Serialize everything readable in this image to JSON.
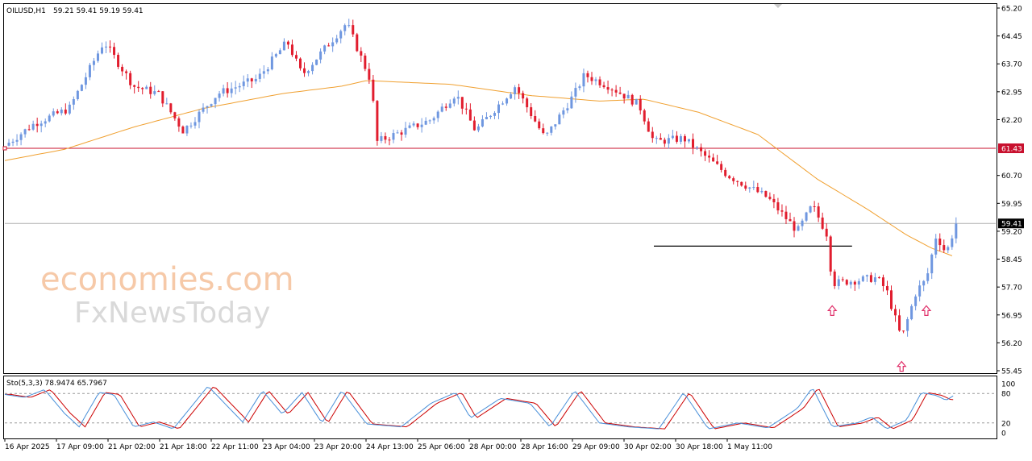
{
  "header": {
    "symbol": "OILUSD,H1",
    "ohlc": "59.21 59.41 59.19 59.41"
  },
  "price_axis": {
    "ticks": [
      "65.20",
      "64.45",
      "63.70",
      "62.95",
      "62.20",
      "61.43",
      "60.70",
      "59.95",
      "59.41",
      "59.20",
      "58.45",
      "57.70",
      "56.95",
      "56.20",
      "55.45"
    ],
    "current_price_label": "59.41",
    "level_label": "61.43"
  },
  "time_axis": {
    "labels": [
      "16 Apr 2025",
      "17 Apr 09:00",
      "21 Apr 02:00",
      "21 Apr 18:00",
      "22 Apr 11:00",
      "23 Apr 04:00",
      "23 Apr 20:00",
      "24 Apr 13:00",
      "25 Apr 06:00",
      "28 Apr 00:00",
      "28 Apr 16:00",
      "29 Apr 09:00",
      "30 Apr 02:00",
      "30 Apr 18:00",
      "1 May 11:00"
    ]
  },
  "stochastic": {
    "label": "Sto(5,3,3) 78.9474 65.7967",
    "levels": [
      "100",
      "80",
      "20",
      "0"
    ]
  },
  "watermark": {
    "line1": "economies.com",
    "line2": "FxNewsToday"
  },
  "colors": {
    "bull": "#6f97e0",
    "bear": "#e11d2e",
    "ma": "#f0a030",
    "resistance": "#c8102e",
    "neckline": "#000000",
    "stoch_main": "#4a90d9",
    "stoch_signal": "#cc0000",
    "arrow": "#e0306a"
  },
  "chart_data": {
    "type": "candlestick",
    "timeframe": "H1",
    "ylim": [
      55.45,
      65.2
    ],
    "horizontal_levels": [
      {
        "value": 61.43,
        "style": "resistance"
      },
      {
        "value": 58.8,
        "style": "neckline"
      }
    ],
    "close_path": [
      {
        "t": 0,
        "v": 61.5
      },
      {
        "t": 0.03,
        "v": 62.1
      },
      {
        "t": 0.065,
        "v": 62.5
      },
      {
        "t": 0.1,
        "v": 64.3
      },
      {
        "t": 0.13,
        "v": 63.1
      },
      {
        "t": 0.155,
        "v": 62.9
      },
      {
        "t": 0.18,
        "v": 61.9
      },
      {
        "t": 0.215,
        "v": 62.9
      },
      {
        "t": 0.255,
        "v": 63.3
      },
      {
        "t": 0.285,
        "v": 64.3
      },
      {
        "t": 0.3,
        "v": 63.4
      },
      {
        "t": 0.345,
        "v": 64.8
      },
      {
        "t": 0.37,
        "v": 63.2
      },
      {
        "t": 0.375,
        "v": 61.6
      },
      {
        "t": 0.43,
        "v": 62.2
      },
      {
        "t": 0.455,
        "v": 62.9
      },
      {
        "t": 0.475,
        "v": 61.9
      },
      {
        "t": 0.515,
        "v": 63.1
      },
      {
        "t": 0.545,
        "v": 61.7
      },
      {
        "t": 0.575,
        "v": 62.9
      },
      {
        "t": 0.585,
        "v": 63.4
      },
      {
        "t": 0.61,
        "v": 63.1
      },
      {
        "t": 0.64,
        "v": 62.6
      },
      {
        "t": 0.655,
        "v": 61.6
      },
      {
        "t": 0.685,
        "v": 61.7
      },
      {
        "t": 0.73,
        "v": 60.7
      },
      {
        "t": 0.77,
        "v": 60.1
      },
      {
        "t": 0.8,
        "v": 59.2
      },
      {
        "t": 0.815,
        "v": 59.9
      },
      {
        "t": 0.83,
        "v": 59.1
      },
      {
        "t": 0.835,
        "v": 57.8
      },
      {
        "t": 0.88,
        "v": 57.95
      },
      {
        "t": 0.89,
        "v": 57.6
      },
      {
        "t": 0.905,
        "v": 56.3
      },
      {
        "t": 0.92,
        "v": 57.6
      },
      {
        "t": 0.93,
        "v": 57.9
      },
      {
        "t": 0.94,
        "v": 59.1
      },
      {
        "t": 0.95,
        "v": 58.6
      },
      {
        "t": 0.96,
        "v": 59.41
      }
    ],
    "ma_path": [
      {
        "t": 0,
        "v": 61.1
      },
      {
        "t": 0.06,
        "v": 61.4
      },
      {
        "t": 0.13,
        "v": 62.0
      },
      {
        "t": 0.2,
        "v": 62.5
      },
      {
        "t": 0.28,
        "v": 62.9
      },
      {
        "t": 0.34,
        "v": 63.1
      },
      {
        "t": 0.365,
        "v": 63.25
      },
      {
        "t": 0.45,
        "v": 63.15
      },
      {
        "t": 0.53,
        "v": 62.85
      },
      {
        "t": 0.6,
        "v": 62.7
      },
      {
        "t": 0.645,
        "v": 62.75
      },
      {
        "t": 0.7,
        "v": 62.4
      },
      {
        "t": 0.76,
        "v": 61.8
      },
      {
        "t": 0.82,
        "v": 60.6
      },
      {
        "t": 0.87,
        "v": 59.8
      },
      {
        "t": 0.91,
        "v": 59.1
      },
      {
        "t": 0.935,
        "v": 58.75
      },
      {
        "t": 0.96,
        "v": 58.5
      }
    ],
    "stochastic_path": [
      {
        "t": 0,
        "v": 78
      },
      {
        "t": 0.02,
        "v": 72
      },
      {
        "t": 0.04,
        "v": 88
      },
      {
        "t": 0.06,
        "v": 40
      },
      {
        "t": 0.075,
        "v": 12
      },
      {
        "t": 0.095,
        "v": 82
      },
      {
        "t": 0.11,
        "v": 78
      },
      {
        "t": 0.13,
        "v": 12
      },
      {
        "t": 0.15,
        "v": 22
      },
      {
        "t": 0.17,
        "v": 8
      },
      {
        "t": 0.205,
        "v": 95
      },
      {
        "t": 0.24,
        "v": 22
      },
      {
        "t": 0.26,
        "v": 86
      },
      {
        "t": 0.28,
        "v": 38
      },
      {
        "t": 0.3,
        "v": 82
      },
      {
        "t": 0.32,
        "v": 20
      },
      {
        "t": 0.34,
        "v": 86
      },
      {
        "t": 0.365,
        "v": 18
      },
      {
        "t": 0.4,
        "v": 12
      },
      {
        "t": 0.43,
        "v": 60
      },
      {
        "t": 0.455,
        "v": 82
      },
      {
        "t": 0.47,
        "v": 30
      },
      {
        "t": 0.5,
        "v": 70
      },
      {
        "t": 0.53,
        "v": 60
      },
      {
        "t": 0.55,
        "v": 12
      },
      {
        "t": 0.575,
        "v": 86
      },
      {
        "t": 0.6,
        "v": 20
      },
      {
        "t": 0.63,
        "v": 12
      },
      {
        "t": 0.66,
        "v": 8
      },
      {
        "t": 0.685,
        "v": 82
      },
      {
        "t": 0.71,
        "v": 8
      },
      {
        "t": 0.74,
        "v": 20
      },
      {
        "t": 0.77,
        "v": 10
      },
      {
        "t": 0.8,
        "v": 50
      },
      {
        "t": 0.815,
        "v": 92
      },
      {
        "t": 0.835,
        "v": 12
      },
      {
        "t": 0.86,
        "v": 20
      },
      {
        "t": 0.875,
        "v": 32
      },
      {
        "t": 0.89,
        "v": 8
      },
      {
        "t": 0.91,
        "v": 26
      },
      {
        "t": 0.925,
        "v": 82
      },
      {
        "t": 0.94,
        "v": 76
      },
      {
        "t": 0.95,
        "v": 66
      },
      {
        "t": 0.96,
        "v": 79
      }
    ],
    "markers": [
      {
        "t": 0.835,
        "v": 57.5,
        "type": "up-arrow"
      },
      {
        "t": 0.905,
        "v": 56.0,
        "type": "up-arrow"
      },
      {
        "t": 0.93,
        "v": 57.5,
        "type": "up-arrow"
      }
    ]
  }
}
